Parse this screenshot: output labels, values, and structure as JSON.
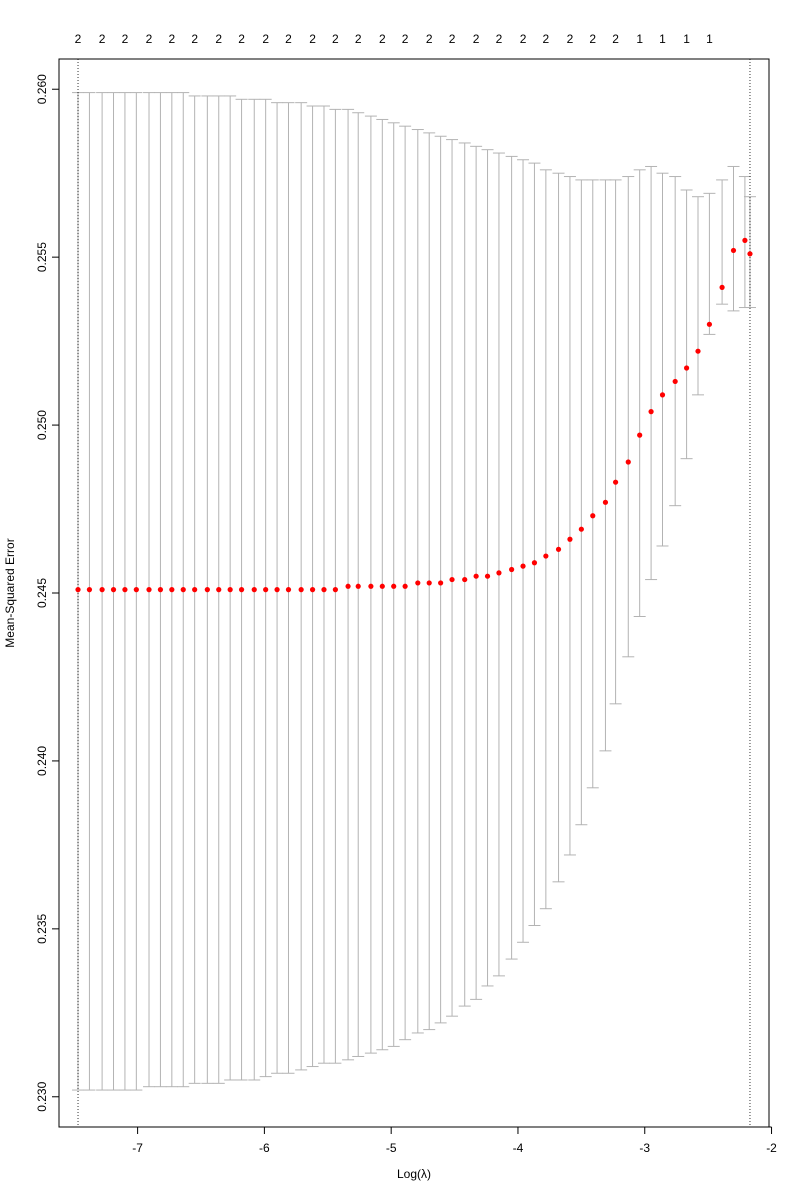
{
  "chart_data": {
    "type": "scatter",
    "title": "",
    "xlabel": "Log(λ)",
    "ylabel": "Mean-Squared Error",
    "xlim": [
      -7.62,
      -2.02
    ],
    "ylim": [
      0.2291,
      0.2609
    ],
    "x_ticks": [
      -7,
      -6,
      -5,
      -4,
      -3,
      -2
    ],
    "y_ticks": [
      0.23,
      0.235,
      0.24,
      0.245,
      0.25,
      0.255,
      0.26
    ],
    "y_tick_labels": [
      "0.230",
      "0.235",
      "0.240",
      "0.245",
      "0.250",
      "0.255",
      "0.260"
    ],
    "top_axis_labels": [
      {
        "x": -7.47,
        "label": "2"
      },
      {
        "x": -7.28,
        "label": "2"
      },
      {
        "x": -7.1,
        "label": "2"
      },
      {
        "x": -6.91,
        "label": "2"
      },
      {
        "x": -6.73,
        "label": "2"
      },
      {
        "x": -6.55,
        "label": "2"
      },
      {
        "x": -6.36,
        "label": "2"
      },
      {
        "x": -6.18,
        "label": "2"
      },
      {
        "x": -5.99,
        "label": "2"
      },
      {
        "x": -5.81,
        "label": "2"
      },
      {
        "x": -5.62,
        "label": "2"
      },
      {
        "x": -5.44,
        "label": "2"
      },
      {
        "x": -5.26,
        "label": "2"
      },
      {
        "x": -5.07,
        "label": "2"
      },
      {
        "x": -4.89,
        "label": "2"
      },
      {
        "x": -4.7,
        "label": "2"
      },
      {
        "x": -4.52,
        "label": "2"
      },
      {
        "x": -4.33,
        "label": "2"
      },
      {
        "x": -4.15,
        "label": "2"
      },
      {
        "x": -3.96,
        "label": "2"
      },
      {
        "x": -3.78,
        "label": "2"
      },
      {
        "x": -3.59,
        "label": "2"
      },
      {
        "x": -3.41,
        "label": "2"
      },
      {
        "x": -3.23,
        "label": "2"
      },
      {
        "x": -3.04,
        "label": "1"
      },
      {
        "x": -2.86,
        "label": "1"
      },
      {
        "x": -2.67,
        "label": "1"
      },
      {
        "x": -2.49,
        "label": "1"
      }
    ],
    "vlines": [
      -7.47,
      -2.17
    ],
    "colors": {
      "points": "#ff0000",
      "error_bars": "#b3b3b3",
      "axes": "#000000"
    },
    "grid": false,
    "legend": "none",
    "series": [
      {
        "x": [
          -7.47,
          -7.38,
          -7.28,
          -7.19,
          -7.1,
          -7.01,
          -6.91,
          -6.82,
          -6.73,
          -6.64,
          -6.55,
          -6.45,
          -6.36,
          -6.27,
          -6.18,
          -6.08,
          -5.99,
          -5.9,
          -5.81,
          -5.71,
          -5.62,
          -5.53,
          -5.44,
          -5.34,
          -5.26,
          -5.16,
          -5.07,
          -4.98,
          -4.89,
          -4.79,
          -4.7,
          -4.61,
          -4.52,
          -4.42,
          -4.33,
          -4.24,
          -4.15,
          -4.05,
          -3.96,
          -3.87,
          -3.78,
          -3.68,
          -3.59,
          -3.5,
          -3.41,
          -3.31,
          -3.23,
          -3.13,
          -3.04,
          -2.95,
          -2.86,
          -2.76,
          -2.67,
          -2.58,
          -2.49,
          -2.39,
          -2.3,
          -2.21,
          -2.17
        ],
        "y": [
          0.2451,
          0.2451,
          0.2451,
          0.2451,
          0.2451,
          0.2451,
          0.2451,
          0.2451,
          0.2451,
          0.2451,
          0.2451,
          0.2451,
          0.2451,
          0.2451,
          0.2451,
          0.2451,
          0.2451,
          0.2451,
          0.2451,
          0.2451,
          0.2451,
          0.2451,
          0.2451,
          0.2452,
          0.2452,
          0.2452,
          0.2452,
          0.2452,
          0.2452,
          0.2453,
          0.2453,
          0.2453,
          0.2454,
          0.2454,
          0.2455,
          0.2455,
          0.2456,
          0.2457,
          0.2458,
          0.2459,
          0.2461,
          0.2463,
          0.2466,
          0.2469,
          0.2473,
          0.2477,
          0.2483,
          0.2489,
          0.2497,
          0.2504,
          0.2509,
          0.2513,
          0.2517,
          0.2522,
          0.253,
          0.2541,
          0.2552,
          0.2555,
          0.2551
        ],
        "upper": [
          0.2599,
          0.2599,
          0.2599,
          0.2599,
          0.2599,
          0.2599,
          0.2599,
          0.2599,
          0.2599,
          0.2599,
          0.2598,
          0.2598,
          0.2598,
          0.2598,
          0.2597,
          0.2597,
          0.2597,
          0.2596,
          0.2596,
          0.2596,
          0.2595,
          0.2595,
          0.2594,
          0.2594,
          0.2593,
          0.2592,
          0.2591,
          0.259,
          0.2589,
          0.2588,
          0.2587,
          0.2586,
          0.2585,
          0.2584,
          0.2583,
          0.2582,
          0.2581,
          0.258,
          0.2579,
          0.2578,
          0.2576,
          0.2575,
          0.2574,
          0.2573,
          0.2573,
          0.2573,
          0.2573,
          0.2574,
          0.2576,
          0.2577,
          0.2575,
          0.2574,
          0.257,
          0.2568,
          0.2569,
          0.2573,
          0.2577,
          0.2574,
          0.2568
        ],
        "lower": [
          0.2302,
          0.2302,
          0.2302,
          0.2302,
          0.2302,
          0.2302,
          0.2303,
          0.2303,
          0.2303,
          0.2303,
          0.2304,
          0.2304,
          0.2304,
          0.2305,
          0.2305,
          0.2305,
          0.2306,
          0.2307,
          0.2307,
          0.2308,
          0.2309,
          0.231,
          0.231,
          0.2311,
          0.2312,
          0.2313,
          0.2314,
          0.2315,
          0.2317,
          0.2319,
          0.232,
          0.2322,
          0.2324,
          0.2327,
          0.2329,
          0.2333,
          0.2336,
          0.2341,
          0.2346,
          0.2351,
          0.2356,
          0.2364,
          0.2372,
          0.2381,
          0.2392,
          0.2403,
          0.2417,
          0.2431,
          0.2443,
          0.2454,
          0.2464,
          0.2476,
          0.249,
          0.2509,
          0.2527,
          0.2536,
          0.2534,
          0.2535,
          0.2535
        ]
      }
    ]
  }
}
